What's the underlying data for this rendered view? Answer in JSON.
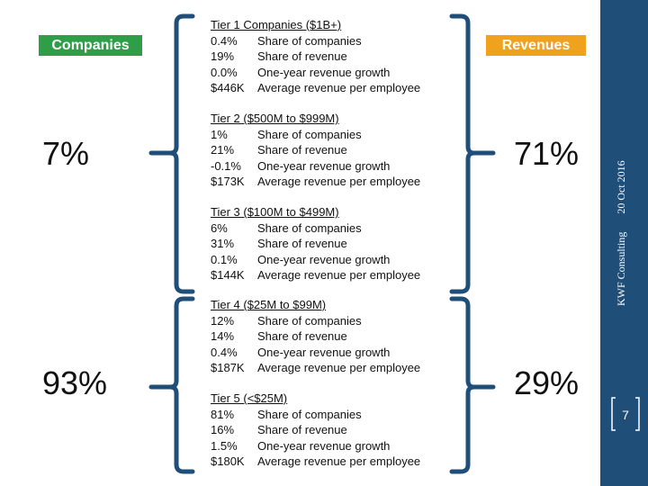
{
  "left_label": "Companies",
  "right_label": "Revenues",
  "company_pcts": [
    "7%",
    "93%"
  ],
  "revenue_pcts": [
    "71%",
    "29%"
  ],
  "tiers": [
    {
      "title": "Tier 1 Companies ($1B+)",
      "rows": [
        {
          "value": "0.4%",
          "desc": "Share of companies"
        },
        {
          "value": "19%",
          "desc": "Share of revenue"
        },
        {
          "value": "0.0%",
          "desc": "One-year revenue growth"
        },
        {
          "value": "$446K",
          "desc": "Average revenue per employee"
        }
      ]
    },
    {
      "title": "Tier 2 ($500M to $999M)",
      "rows": [
        {
          "value": "1%",
          "desc": "Share of companies"
        },
        {
          "value": "21%",
          "desc": "Share of revenue"
        },
        {
          "value": "-0.1%",
          "desc": "One-year revenue growth"
        },
        {
          "value": "$173K",
          "desc": "Average revenue per employee"
        }
      ]
    },
    {
      "title": "Tier 3 ($100M to $499M)",
      "rows": [
        {
          "value": "6%",
          "desc": "Share of companies"
        },
        {
          "value": "31%",
          "desc": "Share of revenue"
        },
        {
          "value": "0.1%",
          "desc": "One-year revenue growth"
        },
        {
          "value": "$144K",
          "desc": "Average revenue per employee"
        }
      ]
    },
    {
      "title": "Tier 4 ($25M to $99M)",
      "rows": [
        {
          "value": "12%",
          "desc": "Share of companies"
        },
        {
          "value": "14%",
          "desc": "Share of revenue"
        },
        {
          "value": "0.4%",
          "desc": "One-year revenue growth"
        },
        {
          "value": "$187K",
          "desc": "Average revenue per employee"
        }
      ]
    },
    {
      "title": "Tier 5 (<$25M)",
      "rows": [
        {
          "value": "81%",
          "desc": "Share of companies"
        },
        {
          "value": "16%",
          "desc": "Share of revenue"
        },
        {
          "value": "1.5%",
          "desc": "One-year revenue growth"
        },
        {
          "value": "$180K",
          "desc": "Average revenue per employee"
        }
      ]
    }
  ],
  "sidebar": {
    "brand": "KWF Consulting",
    "date": "20 Oct 2016"
  },
  "page_number": "7",
  "colors": {
    "companies": "#2e9e48",
    "revenues": "#f0a11e",
    "sidebar": "#1f4e79",
    "brace": "#1f4e79"
  }
}
